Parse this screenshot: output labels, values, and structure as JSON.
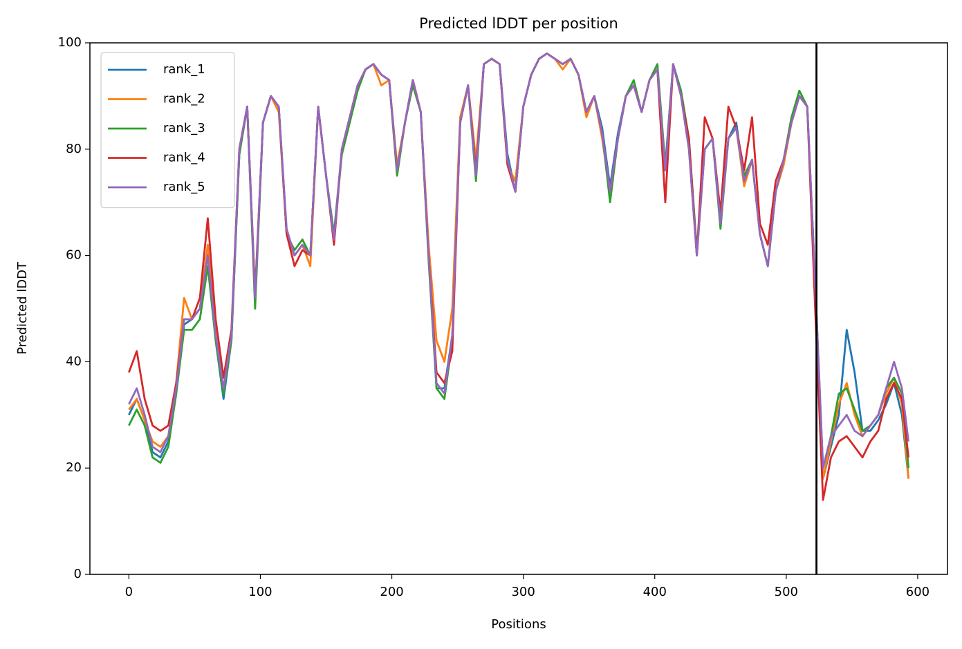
{
  "chart_data": {
    "type": "line",
    "title": "Predicted lDDT per position",
    "xlabel": "Positions",
    "ylabel": "Predicted lDDT",
    "xlim": [
      -29.65,
      622.65
    ],
    "xticks": [
      0,
      100,
      200,
      300,
      400,
      500,
      600
    ],
    "ylim": [
      0,
      100
    ],
    "yticks": [
      0,
      20,
      40,
      60,
      80,
      100
    ],
    "legend": "upper left",
    "vline": 523,
    "vline_color": "#000000",
    "x": [
      0,
      6,
      12,
      18,
      24,
      30,
      36,
      42,
      48,
      54,
      60,
      66,
      72,
      78,
      84,
      90,
      96,
      102,
      108,
      114,
      120,
      126,
      132,
      138,
      144,
      150,
      156,
      162,
      168,
      174,
      180,
      186,
      192,
      198,
      204,
      210,
      216,
      222,
      228,
      234,
      240,
      246,
      252,
      258,
      264,
      270,
      276,
      282,
      288,
      294,
      300,
      306,
      312,
      318,
      324,
      330,
      336,
      342,
      348,
      354,
      360,
      366,
      372,
      378,
      384,
      390,
      396,
      402,
      408,
      414,
      420,
      426,
      432,
      438,
      444,
      450,
      456,
      462,
      468,
      474,
      480,
      486,
      492,
      498,
      504,
      510,
      516,
      522,
      528,
      534,
      540,
      546,
      552,
      558,
      564,
      570,
      576,
      582,
      588,
      593
    ],
    "series": [
      {
        "name": "rank_1",
        "color": "#1f77b4",
        "values": [
          30,
          33,
          29,
          23,
          22,
          25,
          34,
          47,
          48,
          50,
          62,
          44,
          33,
          44,
          79,
          88,
          52,
          85,
          90,
          88,
          64,
          60,
          62,
          60,
          88,
          75,
          64,
          80,
          86,
          92,
          95,
          96,
          94,
          93,
          76,
          85,
          93,
          87,
          60,
          35,
          35,
          45,
          85,
          92,
          76,
          96,
          97,
          96,
          79,
          72,
          88,
          94,
          97,
          98,
          97,
          96,
          97,
          94,
          87,
          90,
          84,
          73,
          83,
          90,
          92,
          87,
          93,
          95,
          76,
          96,
          90,
          80,
          60,
          80,
          82,
          66,
          82,
          85,
          74,
          78,
          64,
          58,
          72,
          78,
          85,
          90,
          88,
          55,
          18,
          24,
          30,
          46,
          38,
          27,
          27,
          29,
          32,
          36,
          30,
          18
        ]
      },
      {
        "name": "rank_2",
        "color": "#ff7f0e",
        "values": [
          31,
          33,
          29,
          25,
          24,
          26,
          36,
          52,
          48,
          50,
          62,
          45,
          35,
          45,
          80,
          88,
          52,
          85,
          90,
          87,
          64,
          60,
          62,
          58,
          88,
          75,
          63,
          80,
          86,
          92,
          95,
          96,
          92,
          93,
          77,
          85,
          93,
          87,
          62,
          44,
          40,
          50,
          86,
          92,
          78,
          96,
          97,
          96,
          77,
          74,
          88,
          94,
          97,
          98,
          97,
          95,
          97,
          94,
          86,
          90,
          82,
          72,
          82,
          90,
          92,
          87,
          93,
          95,
          76,
          96,
          90,
          80,
          60,
          80,
          82,
          66,
          82,
          84,
          73,
          78,
          64,
          58,
          72,
          77,
          85,
          90,
          88,
          55,
          18,
          25,
          32,
          36,
          30,
          26,
          28,
          30,
          34,
          37,
          32,
          18
        ]
      },
      {
        "name": "rank_3",
        "color": "#2ca02c",
        "values": [
          28,
          31,
          28,
          22,
          21,
          24,
          34,
          46,
          46,
          48,
          58,
          44,
          34,
          44,
          79,
          88,
          50,
          85,
          90,
          88,
          64,
          61,
          63,
          60,
          88,
          75,
          64,
          79,
          85,
          91,
          95,
          96,
          94,
          93,
          75,
          85,
          92,
          87,
          59,
          35,
          33,
          44,
          85,
          92,
          74,
          96,
          97,
          96,
          78,
          72,
          88,
          94,
          97,
          98,
          97,
          96,
          97,
          94,
          87,
          90,
          83,
          70,
          82,
          90,
          93,
          87,
          93,
          96,
          77,
          96,
          91,
          82,
          61,
          80,
          82,
          65,
          82,
          84,
          75,
          78,
          64,
          58,
          72,
          78,
          86,
          91,
          88,
          55,
          20,
          26,
          34,
          35,
          31,
          27,
          28,
          30,
          35,
          37,
          34,
          20
        ]
      },
      {
        "name": "rank_4",
        "color": "#d62728",
        "values": [
          38,
          42,
          33,
          28,
          27,
          28,
          36,
          48,
          48,
          52,
          67,
          48,
          37,
          46,
          80,
          88,
          53,
          85,
          90,
          88,
          64,
          58,
          61,
          60,
          88,
          75,
          62,
          80,
          86,
          92,
          95,
          96,
          94,
          93,
          76,
          85,
          93,
          87,
          60,
          38,
          36,
          42,
          85,
          92,
          76,
          96,
          97,
          96,
          77,
          72,
          88,
          94,
          97,
          98,
          97,
          96,
          97,
          94,
          87,
          90,
          83,
          72,
          82,
          90,
          92,
          87,
          93,
          95,
          70,
          96,
          90,
          82,
          60,
          86,
          82,
          68,
          88,
          84,
          76,
          86,
          66,
          62,
          74,
          78,
          85,
          90,
          88,
          50,
          14,
          22,
          25,
          26,
          24,
          22,
          25,
          27,
          33,
          36,
          33,
          22
        ]
      },
      {
        "name": "rank_5",
        "color": "#9467bd",
        "values": [
          32,
          35,
          30,
          24,
          23,
          26,
          35,
          48,
          48,
          50,
          60,
          45,
          35,
          45,
          80,
          88,
          52,
          85,
          90,
          88,
          65,
          60,
          62,
          60,
          88,
          75,
          63,
          80,
          86,
          92,
          95,
          96,
          94,
          93,
          76,
          85,
          93,
          87,
          60,
          36,
          34,
          45,
          85,
          92,
          75,
          96,
          97,
          96,
          78,
          72,
          88,
          94,
          97,
          98,
          97,
          96,
          97,
          94,
          87,
          90,
          83,
          72,
          82,
          90,
          92,
          87,
          93,
          95,
          76,
          96,
          90,
          80,
          60,
          80,
          82,
          66,
          82,
          84,
          74,
          78,
          64,
          58,
          72,
          78,
          85,
          90,
          88,
          55,
          20,
          26,
          28,
          30,
          27,
          26,
          28,
          30,
          35,
          40,
          35,
          25
        ]
      }
    ]
  }
}
